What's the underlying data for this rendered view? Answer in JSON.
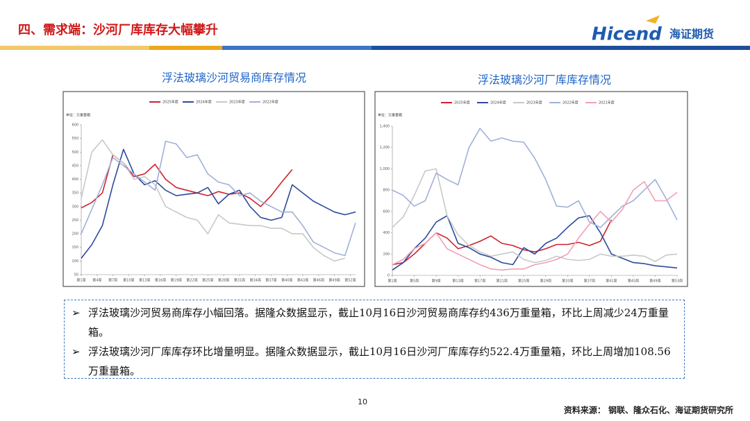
{
  "header": {
    "title": "四、需求端：沙河厂库库存大幅攀升",
    "logo_text": "Hicend",
    "logo_cn": "海证期货"
  },
  "chart_data": [
    {
      "type": "line",
      "title": "浮法玻璃沙河贸易商库存情况",
      "unit_label": "单位：万重量箱",
      "x": [
        1,
        3,
        5,
        7,
        9,
        11,
        13,
        15,
        17,
        19,
        21,
        23,
        25,
        27,
        29,
        31,
        33,
        35,
        37,
        39,
        41,
        43,
        45,
        47,
        49,
        51,
        53
      ],
      "xlim": [
        1,
        53
      ],
      "xticks": [
        {
          "value": 1,
          "label": "第1周"
        },
        {
          "value": 4,
          "label": "第4周"
        },
        {
          "value": 7,
          "label": "第7周"
        },
        {
          "value": 10,
          "label": "第10周"
        },
        {
          "value": 13,
          "label": "第13周"
        },
        {
          "value": 16,
          "label": "第16周"
        },
        {
          "value": 19,
          "label": "第19周"
        },
        {
          "value": 22,
          "label": "第22周"
        },
        {
          "value": 25,
          "label": "第25周"
        },
        {
          "value": 28,
          "label": "第28周"
        },
        {
          "value": 31,
          "label": "第31周"
        },
        {
          "value": 34,
          "label": "第34周"
        },
        {
          "value": 37,
          "label": "第37周"
        },
        {
          "value": 40,
          "label": "第40周"
        },
        {
          "value": 43,
          "label": "第43周"
        },
        {
          "value": 46,
          "label": "第46周"
        },
        {
          "value": 49,
          "label": "第49周"
        },
        {
          "value": 52,
          "label": "第52周"
        }
      ],
      "ylim": [
        50,
        600
      ],
      "yticks": [
        50,
        100,
        150,
        200,
        250,
        300,
        350,
        400,
        450,
        500,
        550,
        600
      ],
      "series": [
        {
          "name": "2025年度",
          "color": "#d0202e",
          "values": [
            295,
            315,
            350,
            490,
            460,
            410,
            420,
            455,
            400,
            370,
            360,
            350,
            340,
            355,
            345,
            350,
            330,
            300,
            340,
            390,
            436,
            null,
            null,
            null,
            null,
            null,
            null
          ]
        },
        {
          "name": "2024年度",
          "color": "#2a4a9a",
          "values": [
            110,
            160,
            230,
            380,
            510,
            420,
            380,
            395,
            360,
            340,
            345,
            350,
            370,
            310,
            345,
            360,
            300,
            260,
            250,
            260,
            380,
            350,
            320,
            300,
            280,
            270,
            280
          ]
        },
        {
          "name": "2023年度",
          "color": "#c8c8c8",
          "values": [
            330,
            500,
            545,
            490,
            460,
            400,
            410,
            380,
            300,
            280,
            260,
            250,
            200,
            270,
            240,
            235,
            230,
            230,
            220,
            220,
            200,
            200,
            150,
            120,
            100,
            110,
            null
          ]
        },
        {
          "name": "2022年度",
          "color": "#9fb0d8",
          "values": [
            200,
            290,
            380,
            480,
            450,
            420,
            390,
            360,
            540,
            530,
            480,
            490,
            420,
            390,
            380,
            340,
            350,
            320,
            300,
            280,
            280,
            230,
            170,
            150,
            130,
            120,
            240
          ]
        }
      ]
    },
    {
      "type": "line",
      "title": "浮法玻璃沙河厂库库存情况",
      "unit_label": "单位：万重量箱",
      "x": [
        1,
        3,
        5,
        7,
        9,
        11,
        13,
        15,
        17,
        19,
        21,
        23,
        25,
        27,
        29,
        31,
        33,
        35,
        37,
        39,
        41,
        43,
        45,
        47,
        49,
        51,
        53
      ],
      "xlim": [
        1,
        53
      ],
      "xticks": [
        {
          "value": 1,
          "label": "第1周"
        },
        {
          "value": 5,
          "label": "第5周"
        },
        {
          "value": 9,
          "label": "第9周"
        },
        {
          "value": 13,
          "label": "第13周"
        },
        {
          "value": 17,
          "label": "第17周"
        },
        {
          "value": 21,
          "label": "第21周"
        },
        {
          "value": 25,
          "label": "第25周"
        },
        {
          "value": 29,
          "label": "第29周"
        },
        {
          "value": 33,
          "label": "第33周"
        },
        {
          "value": 37,
          "label": "第37周"
        },
        {
          "value": 41,
          "label": "第41周"
        },
        {
          "value": 45,
          "label": "第45周"
        },
        {
          "value": 49,
          "label": "第49周"
        },
        {
          "value": 53,
          "label": "第53周"
        }
      ],
      "ylim": [
        0,
        1400
      ],
      "yticks": [
        0,
        200,
        400,
        600,
        800,
        {
          "value": 1000,
          "label": "1,000"
        },
        {
          "value": 1200,
          "label": "1,200"
        },
        {
          "value": 1400,
          "label": "1,400"
        }
      ],
      "series": [
        {
          "name": "2025年度",
          "color": "#d0202e",
          "values": [
            100,
            120,
            200,
            300,
            400,
            350,
            250,
            280,
            320,
            370,
            300,
            280,
            240,
            220,
            250,
            290,
            290,
            310,
            280,
            320,
            522,
            null,
            null,
            null,
            null,
            null,
            null
          ]
        },
        {
          "name": "2024年度",
          "color": "#2a4a9a",
          "values": [
            50,
            120,
            250,
            350,
            500,
            560,
            300,
            260,
            200,
            170,
            120,
            100,
            260,
            200,
            300,
            350,
            450,
            540,
            560,
            400,
            200,
            160,
            120,
            110,
            90,
            80,
            70
          ]
        },
        {
          "name": "2023年度",
          "color": "#c8c8c8",
          "values": [
            450,
            550,
            750,
            980,
            1000,
            560,
            380,
            280,
            220,
            180,
            200,
            220,
            150,
            120,
            140,
            180,
            150,
            140,
            150,
            200,
            180,
            180,
            190,
            180,
            130,
            190,
            200
          ]
        },
        {
          "name": "2022年度",
          "color": "#9fb0d8",
          "values": [
            800,
            750,
            650,
            700,
            960,
            900,
            850,
            1200,
            1380,
            1260,
            1290,
            1260,
            1250,
            1100,
            900,
            650,
            640,
            700,
            500,
            450,
            550,
            650,
            700,
            800,
            900,
            720,
            520
          ]
        },
        {
          "name": "2021年度",
          "color": "#f0a0b4",
          "values": [
            100,
            150,
            250,
            300,
            400,
            250,
            200,
            150,
            100,
            60,
            50,
            60,
            60,
            100,
            120,
            150,
            200,
            350,
            480,
            600,
            500,
            620,
            800,
            880,
            700,
            700,
            780
          ]
        }
      ]
    }
  ],
  "bullets": [
    "浮法玻璃沙河贸易商库存小幅回落。据隆众数据显示，截止10月16日沙河贸易商库存约436万重量箱，环比上周减少24万重量箱。",
    "浮法玻璃沙河厂库库存环比增量明显。据隆众数据显示，截止10月16日沙河厂库库存约522.4万重量箱，环比上周增加108.56万重量箱。"
  ],
  "page_number": "10",
  "source": "资料来源： 钢联、隆众石化、海证期货研究所"
}
